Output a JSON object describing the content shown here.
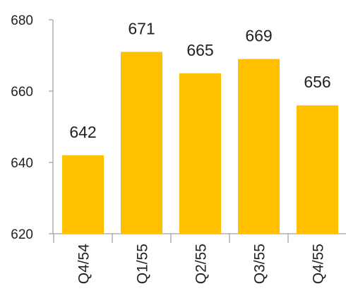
{
  "chart_data": {
    "type": "bar",
    "categories": [
      "Q4/54",
      "Q1/55",
      "Q2/55",
      "Q3/55",
      "Q4/55"
    ],
    "values": [
      642,
      671,
      665,
      669,
      656
    ],
    "data_labels": [
      "642",
      "671",
      "665",
      "669",
      "656"
    ],
    "title": "",
    "xlabel": "",
    "ylabel": "",
    "ylim": [
      620,
      680
    ],
    "yticks": [
      620,
      640,
      660,
      680
    ],
    "ytick_labels": [
      "620",
      "640",
      "660",
      "680"
    ],
    "grid": false,
    "legend": "none",
    "bar_color": "#FFC000"
  }
}
